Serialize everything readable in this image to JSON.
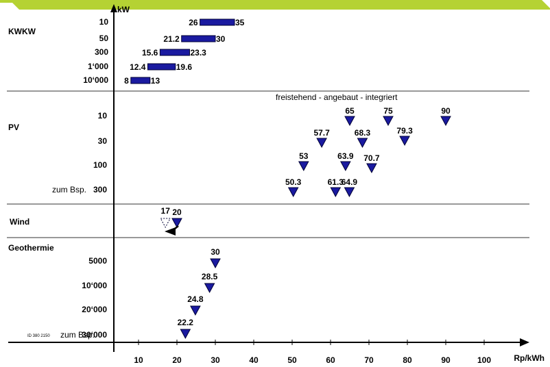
{
  "chart_data": {
    "type": "scatter",
    "title": "",
    "xlabel": "Rp/kWh",
    "ylabel": "kW",
    "xlim": [
      0,
      108
    ],
    "x_ticks": [
      10,
      20,
      30,
      40,
      50,
      60,
      70,
      80,
      90,
      100
    ],
    "id_note": "ID 380 2150",
    "sections": [
      {
        "name": "KWKW",
        "mark": "bar",
        "rows": [
          {
            "label": "10",
            "low": 26,
            "high": 35,
            "low_label": "26",
            "high_label": "35"
          },
          {
            "label": "50",
            "low": 21.2,
            "high": 30,
            "low_label": "21.2",
            "high_label": "30"
          },
          {
            "label": "300",
            "low": 15.6,
            "high": 23.3,
            "low_label": "15.6",
            "high_label": "23.3"
          },
          {
            "label": "1‘000",
            "low": 12.4,
            "high": 19.6,
            "low_label": "12.4",
            "high_label": "19.6"
          },
          {
            "label": "10‘000",
            "low": 8,
            "high": 13,
            "low_label": "8",
            "high_label": "13"
          }
        ]
      },
      {
        "name": "PV",
        "mark": "triangle",
        "header": "freistehend  -  angebaut  -  integriert",
        "rows": [
          {
            "label": "10",
            "points": [
              65,
              75,
              90
            ],
            "point_labels": [
              "65",
              "75",
              "90"
            ]
          },
          {
            "label": "30",
            "points": [
              57.7,
              68.3,
              79.3
            ],
            "point_labels": [
              "57.7",
              "68.3",
              "79.3"
            ]
          },
          {
            "label": "100",
            "points": [
              53,
              63.9,
              70.7
            ],
            "point_labels": [
              "53",
              "63.9",
              "70.7"
            ]
          },
          {
            "label": "300",
            "prefix": "zum Bsp.",
            "points": [
              50.3,
              61.3,
              64.9
            ],
            "point_labels": [
              "50.3",
              "61.3",
              "64.9"
            ]
          }
        ]
      },
      {
        "name": "Wind",
        "mark": "triangle",
        "rows": [
          {
            "label": "",
            "points": [
              20
            ],
            "point_labels": [
              "20"
            ],
            "previous_point": 17,
            "previous_label": "17"
          }
        ]
      },
      {
        "name": "Geothermie",
        "mark": "triangle",
        "rows": [
          {
            "label": "5000",
            "points": [
              30
            ],
            "point_labels": [
              "30"
            ]
          },
          {
            "label": "10‘000",
            "points": [
              28.5
            ],
            "point_labels": [
              "28.5"
            ]
          },
          {
            "label": "20‘000",
            "points": [
              24.8
            ],
            "point_labels": [
              "24.8"
            ]
          },
          {
            "label": "30‘000",
            "prefix": "zum Bsp.",
            "points": [
              22.2
            ],
            "point_labels": [
              "22.2"
            ]
          }
        ]
      }
    ]
  },
  "colors": {
    "marker_fill": "#1a1aa0",
    "marker_stroke": "#000033",
    "banner": "#b5d233",
    "axis": "#000000",
    "divider": "#333333"
  }
}
